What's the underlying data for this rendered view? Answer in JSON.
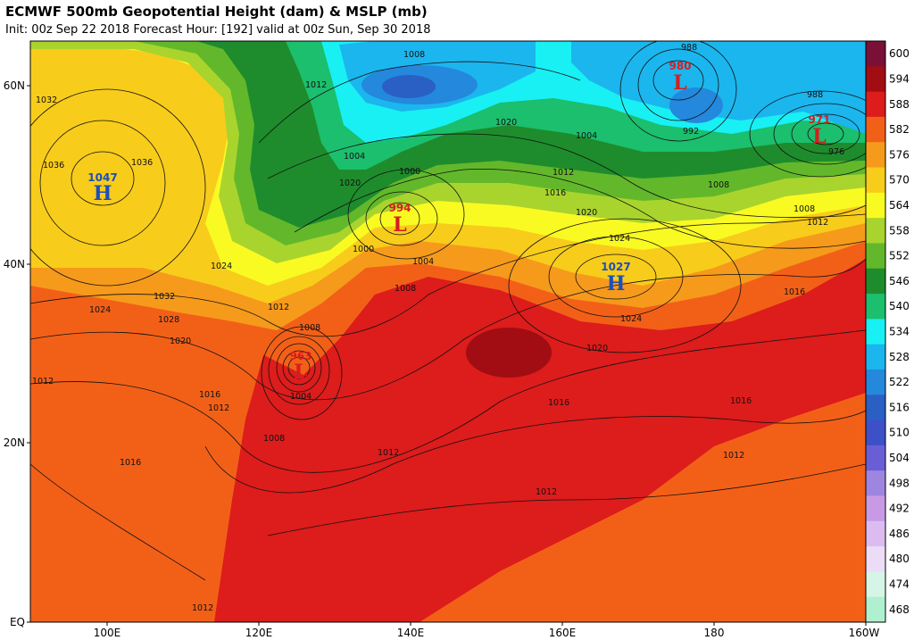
{
  "header": {
    "title": "ECMWF 500mb Geopotential Height (dam) & MSLP (mb)",
    "subtitle": "Init: 00z Sep 22 2018   Forecast Hour: [192]   valid at 00z Sun, Sep 30 2018"
  },
  "axes": {
    "lat_labels": [
      "60N",
      "40N",
      "20N",
      "EQ"
    ],
    "lon_labels": [
      "100E",
      "120E",
      "140E",
      "160E",
      "180",
      "160W"
    ]
  },
  "colorbar": {
    "levels": [
      {
        "label": "600",
        "color": "#7a1038"
      },
      {
        "label": "594",
        "color": "#a10d12"
      },
      {
        "label": "588",
        "color": "#dd1c1c"
      },
      {
        "label": "582",
        "color": "#f26018"
      },
      {
        "label": "576",
        "color": "#f69a1c"
      },
      {
        "label": "570",
        "color": "#f8cc1a"
      },
      {
        "label": "564",
        "color": "#fafa23"
      },
      {
        "label": "558",
        "color": "#a9d42e"
      },
      {
        "label": "552",
        "color": "#62b82a"
      },
      {
        "label": "546",
        "color": "#1e8c2c"
      },
      {
        "label": "540",
        "color": "#1bbf6d"
      },
      {
        "label": "534",
        "color": "#18f0f4"
      },
      {
        "label": "528",
        "color": "#1bb6ee"
      },
      {
        "label": "522",
        "color": "#2488dc"
      },
      {
        "label": "516",
        "color": "#2a5fc4"
      },
      {
        "label": "510",
        "color": "#3d50c8"
      },
      {
        "label": "504",
        "color": "#6a5ed6"
      },
      {
        "label": "498",
        "color": "#9e86e0"
      },
      {
        "label": "492",
        "color": "#c89ae6"
      },
      {
        "label": "486",
        "color": "#dcbcf0"
      },
      {
        "label": "480",
        "color": "#ecdcf6"
      },
      {
        "label": "474",
        "color": "#d6f5e6"
      },
      {
        "label": "468",
        "color": "#aef0cf"
      }
    ]
  },
  "pressure_systems": [
    {
      "type": "H",
      "value": "1047",
      "color": "#1d4fb8"
    },
    {
      "type": "L",
      "value": "994",
      "color": "#d61e1e"
    },
    {
      "type": "L",
      "value": "963",
      "color": "#d61e1e"
    },
    {
      "type": "H",
      "value": "1027",
      "color": "#1d4fb8"
    },
    {
      "type": "L",
      "value": "980",
      "color": "#d61e1e"
    },
    {
      "type": "L",
      "value": "971",
      "color": "#d61e1e"
    }
  ],
  "isobar_labels": [
    "1032",
    "1036",
    "1036",
    "1008",
    "1012",
    "1004",
    "1000",
    "1000",
    "1004",
    "1008",
    "1024",
    "1032",
    "1028",
    "1024",
    "1020",
    "1016",
    "1012",
    "1012",
    "1008",
    "1004",
    "1008",
    "1012",
    "1012",
    "1016",
    "1020",
    "1024",
    "1016",
    "1012",
    "1008",
    "1004",
    "1012",
    "1016",
    "1020",
    "1024",
    "988",
    "992",
    "988",
    "976",
    "1008",
    "1012",
    "1016",
    "1020",
    "1016",
    "1012",
    "1012",
    "1020"
  ]
}
